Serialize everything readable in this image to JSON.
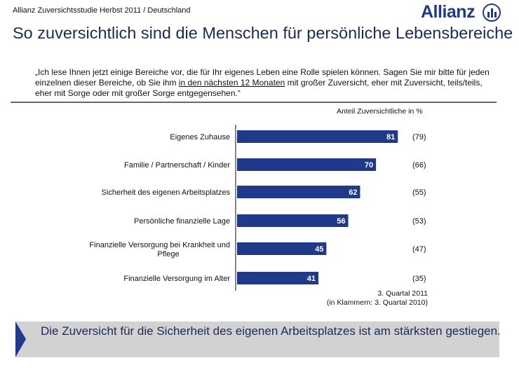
{
  "header": {
    "study": "Allianz Zuversichtsstudie Herbst 2011 / Deutschland",
    "logo": "Allianz",
    "title": "So zuversichtlich sind die Menschen für persönliche Lebensbereiche"
  },
  "question": {
    "part1": "„Ich lese Ihnen jetzt einige Bereiche vor, die für Ihr eigenes Leben eine Rolle spielen können. Sagen Sie mir bitte für jeden einzelnen dieser Bereiche, ob Sie ihm ",
    "underlined": "in den nächsten 12 Monaten",
    "part2": " mit großer Zuversicht, eher mit Zuversicht, teils/teils, eher mit Sorge oder mit großer Sorge entgegensehen.“"
  },
  "chart_data": {
    "type": "bar",
    "orientation": "horizontal",
    "unit_label": "Anteil Zuversichtliche in %",
    "categories": [
      "Eigenes Zuhause",
      "Familie / Partnerschaft / Kinder",
      "Sicherheit des eigenen Arbeitsplatzes",
      "Persönliche finanzielle Lage",
      "Finanzielle Versorgung bei Krankheit und Pflege",
      "Finanzielle Versorgung im Alter"
    ],
    "series": [
      {
        "name": "3. Quartal 2011",
        "values": [
          81,
          70,
          62,
          56,
          45,
          41
        ]
      },
      {
        "name": "3. Quartal 2010",
        "values": [
          79,
          66,
          55,
          53,
          47,
          35
        ]
      }
    ],
    "xlim": [
      0,
      100
    ],
    "bar_color": "#1f3a8a",
    "grid": false
  },
  "notes": {
    "line1": "3. Quartal 2011",
    "line2": "(in Klammern: 3. Quartal 2010)"
  },
  "conclusion": "Die Zuversicht für die Sicherheit des eigenen Arbeitsplatzes ist am stärksten gestiegen."
}
